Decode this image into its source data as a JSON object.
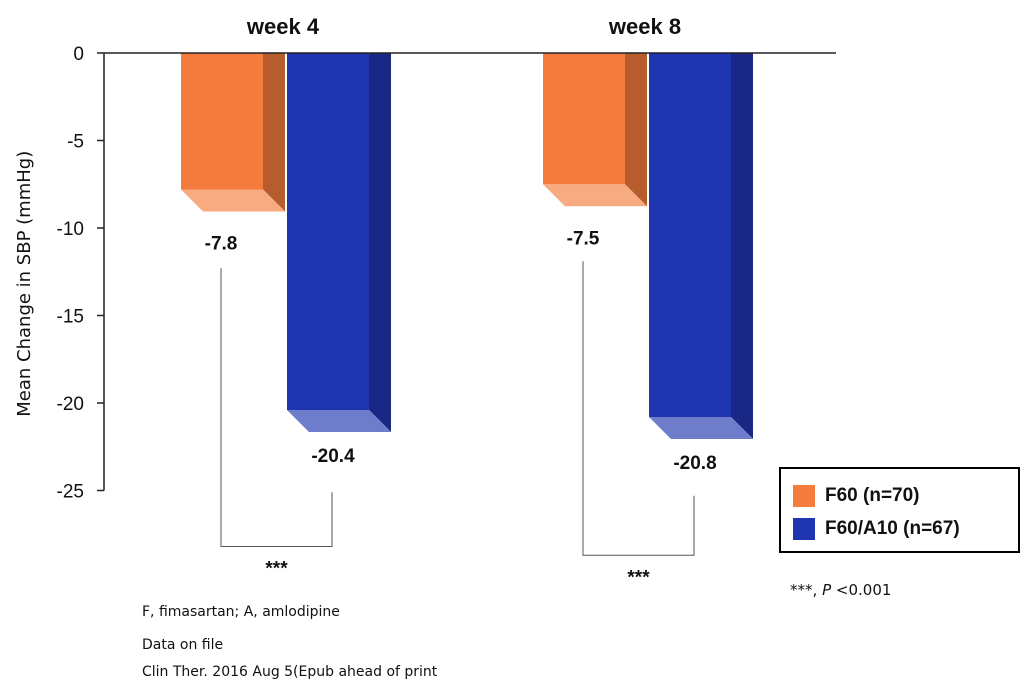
{
  "chart_data": {
    "type": "bar",
    "categories": [
      "week 4",
      "week 8"
    ],
    "series": [
      {
        "name": "F60 (n=70)",
        "color": "#f47c3c",
        "values": [
          -7.8,
          -7.5
        ],
        "labels": [
          "-7.8",
          "-7.5"
        ]
      },
      {
        "name": "F60/A10 (n=67)",
        "color": "#2035b0",
        "values": [
          -20.4,
          -20.8
        ],
        "labels": [
          "-20.4",
          "-20.8"
        ]
      }
    ],
    "ylabel": "Mean Change in SBP (mmHg)",
    "yticks": [
      0,
      -5,
      -10,
      -15,
      -20,
      -25
    ],
    "ytick_labels": [
      "0",
      "-5",
      "-10",
      "-15",
      "-20",
      "-25"
    ],
    "ylim": [
      -25,
      0
    ],
    "significance": [
      "***",
      "***"
    ]
  },
  "legend": {
    "f60_label": "F60 (n=70)",
    "f60a10_label": "F60/A10 (n=67)",
    "f60_color": "#f47c3c",
    "f60a10_color": "#2035b0"
  },
  "notes": {
    "pvalue_stars": "***,",
    "pvalue_p": "P",
    "pvalue_rest": "<0.001",
    "abbrev": "F, fimasartan; A, amlodipine",
    "data_source": "Data on file",
    "citation": "Clin Ther. 2016 Aug 5(Epub ahead of print"
  }
}
